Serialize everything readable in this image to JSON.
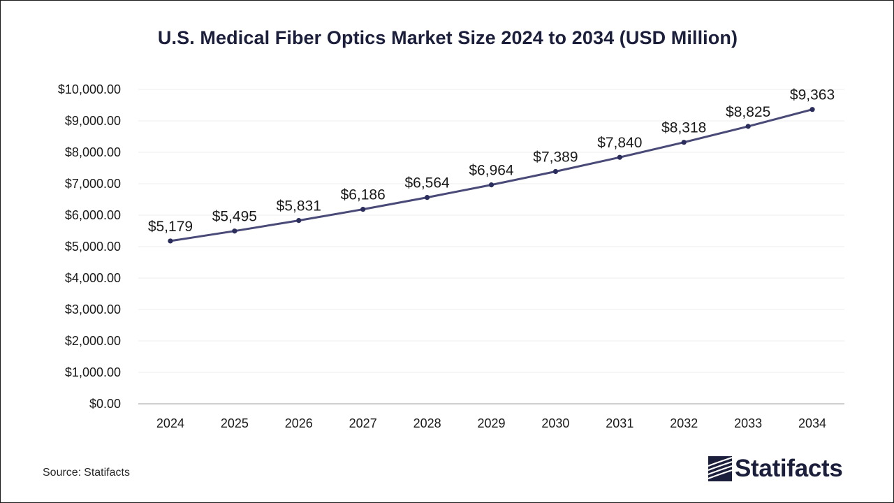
{
  "chart_data": {
    "type": "line",
    "title": "U.S. Medical Fiber Optics Market Size 2024 to 2034 (USD Million)",
    "xlabel": "",
    "ylabel": "",
    "categories": [
      "2024",
      "2025",
      "2026",
      "2027",
      "2028",
      "2029",
      "2030",
      "2031",
      "2032",
      "2033",
      "2034"
    ],
    "series": [
      {
        "name": "U.S. Medical Fiber Optics Market Size",
        "values": [
          5179,
          5495,
          5831,
          6186,
          6564,
          6964,
          7389,
          7840,
          8318,
          8825,
          9363
        ],
        "labels": [
          "$5,179",
          "$5,495",
          "$5,831",
          "$6,186",
          "$6,564",
          "$6,964",
          "$7,389",
          "$7,840",
          "$8,318",
          "$8,825",
          "$9,363"
        ]
      }
    ],
    "ylim": [
      0,
      10000
    ],
    "yticks": [
      0,
      1000,
      2000,
      3000,
      4000,
      5000,
      6000,
      7000,
      8000,
      9000,
      10000
    ],
    "ytick_labels": [
      "$0.00",
      "$1,000.00",
      "$2,000.00",
      "$3,000.00",
      "$4,000.00",
      "$5,000.00",
      "$6,000.00",
      "$7,000.00",
      "$8,000.00",
      "$9,000.00",
      "$10,000.00"
    ],
    "grid": true,
    "legend": "none",
    "line_color": "#4a4a78",
    "marker_color": "#2b2d5c",
    "grid_color": "#ececec",
    "axis_color": "#bfbfbf"
  },
  "footer": {
    "source_prefix": "Source:",
    "source_name": "Statifacts"
  },
  "brand": {
    "name": "Statifacts",
    "icon": "statifacts-logo-icon",
    "color": "#1b1f3b"
  }
}
